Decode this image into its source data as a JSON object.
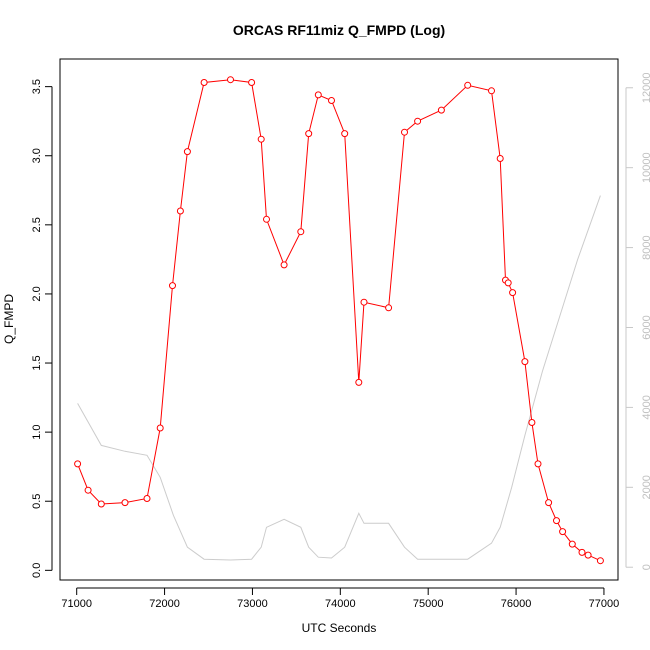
{
  "chart_data": {
    "type": "line",
    "title": "ORCAS RF11miz Q_FMPD (Log)",
    "xlabel": "UTC Seconds",
    "ylabel": "Q_FMPD",
    "xlim": [
      70810,
      77160
    ],
    "ylim": [
      -0.07,
      3.7
    ],
    "y2lim": [
      -320,
      12720
    ],
    "x_ticks": [
      71000,
      72000,
      73000,
      74000,
      75000,
      76000,
      77000
    ],
    "x_tick_labels": [
      "71000",
      "72000",
      "73000",
      "74000",
      "75000",
      "76000",
      "77000"
    ],
    "y_ticks": [
      0.0,
      0.5,
      1.0,
      1.5,
      2.0,
      2.5,
      3.0,
      3.5
    ],
    "y_tick_labels": [
      "0.0",
      "0.5",
      "1.0",
      "1.5",
      "2.0",
      "2.5",
      "3.0",
      "3.5"
    ],
    "y2_ticks": [
      0,
      2000,
      4000,
      6000,
      8000,
      10000,
      12000
    ],
    "y2_tick_labels": [
      "0",
      "2000",
      "4000",
      "6000",
      "8000",
      "10000",
      "12000"
    ],
    "grid": false,
    "series": [
      {
        "axis": "left",
        "color": "#ff0000",
        "marker": "open-circle",
        "x": [
          71010,
          71130,
          71280,
          71550,
          71800,
          71950,
          72090,
          72180,
          72260,
          72450,
          72750,
          72990,
          73100,
          73160,
          73360,
          73550,
          73640,
          73750,
          73900,
          74050,
          74210,
          74270,
          74550,
          74730,
          74880,
          75150,
          75450,
          75720,
          75820,
          75880,
          75910,
          75960,
          76100,
          76180,
          76250,
          76370,
          76460,
          76530,
          76640,
          76750,
          76820,
          76960
        ],
        "y": [
          0.77,
          0.58,
          0.48,
          0.49,
          0.52,
          1.03,
          2.06,
          2.6,
          3.03,
          3.53,
          3.55,
          3.53,
          3.12,
          2.54,
          2.21,
          2.45,
          3.16,
          3.44,
          3.4,
          3.16,
          1.36,
          1.94,
          1.9,
          3.17,
          3.25,
          3.33,
          3.51,
          3.47,
          2.98,
          2.1,
          2.08,
          2.01,
          1.51,
          1.07,
          0.77,
          0.49,
          0.36,
          0.28,
          0.19,
          0.13,
          0.11,
          0.07
        ]
      },
      {
        "axis": "right",
        "color": "#cccccc",
        "marker": "none",
        "x": [
          71010,
          71280,
          71550,
          71800,
          71950,
          72100,
          72260,
          72450,
          72750,
          72990,
          73100,
          73160,
          73360,
          73550,
          73640,
          73750,
          73900,
          74050,
          74210,
          74270,
          74550,
          74730,
          74880,
          75150,
          75450,
          75720,
          75820,
          75950,
          76100,
          76300,
          76500,
          76700,
          76960
        ],
        "y": [
          4100,
          3050,
          2900,
          2800,
          2250,
          1300,
          500,
          200,
          180,
          200,
          500,
          1000,
          1200,
          1000,
          500,
          250,
          230,
          500,
          1350,
          1100,
          1100,
          500,
          200,
          200,
          200,
          600,
          1000,
          2000,
          3300,
          4900,
          6300,
          7700,
          9300
        ]
      }
    ]
  }
}
